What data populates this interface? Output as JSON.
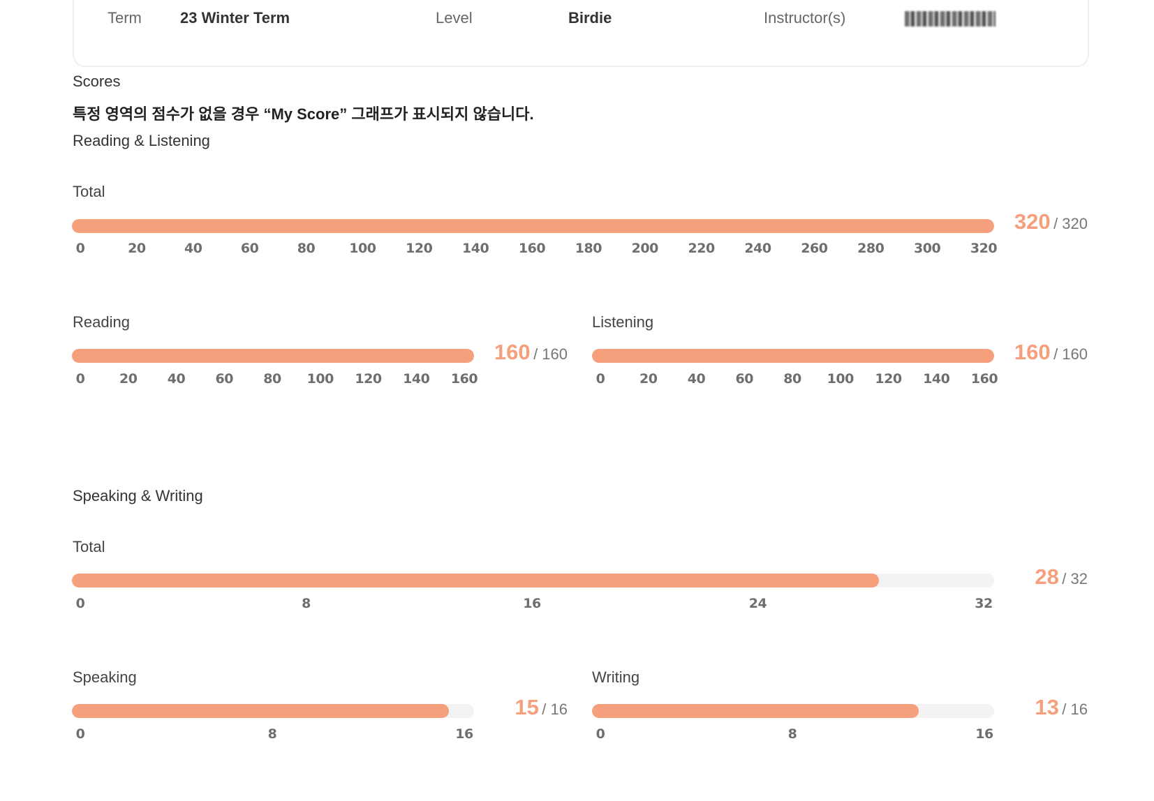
{
  "header": {
    "term_label": "Term",
    "term_value": "23 Winter Term",
    "level_label": "Level",
    "level_value": "Birdie",
    "instructor_label": "Instructor(s)",
    "instructor_value": ""
  },
  "scores": {
    "title": "Scores",
    "notice": "특정 영역의 점수가 없을 경우 “My Score” 그래프가 표시되지 않습니다.",
    "sections": [
      {
        "title": "Reading & Listening",
        "total": {
          "label": "Total",
          "score": 320,
          "score_text": "320",
          "max": 320,
          "max_text": "/ 320",
          "ticks": [
            "0",
            "20",
            "40",
            "60",
            "80",
            "100",
            "120",
            "140",
            "160",
            "180",
            "200",
            "220",
            "240",
            "260",
            "280",
            "300",
            "320"
          ]
        },
        "parts": [
          {
            "label": "Reading",
            "score": 160,
            "score_text": "160",
            "max": 160,
            "max_text": "/ 160",
            "ticks": [
              "0",
              "20",
              "40",
              "60",
              "80",
              "100",
              "120",
              "140",
              "160"
            ]
          },
          {
            "label": "Listening",
            "score": 160,
            "score_text": "160",
            "max": 160,
            "max_text": "/ 160",
            "ticks": [
              "0",
              "20",
              "40",
              "60",
              "80",
              "100",
              "120",
              "140",
              "160"
            ]
          }
        ]
      },
      {
        "title": "Speaking & Writing",
        "total": {
          "label": "Total",
          "score": 28,
          "score_text": "28",
          "max": 32,
          "max_text": "/ 32",
          "ticks": [
            "0",
            "8",
            "16",
            "24",
            "32"
          ]
        },
        "parts": [
          {
            "label": "Speaking",
            "score": 15,
            "score_text": "15",
            "max": 16,
            "max_text": "/ 16",
            "ticks": [
              "0",
              "8",
              "16"
            ]
          },
          {
            "label": "Writing",
            "score": 13,
            "score_text": "13",
            "max": 16,
            "max_text": "/ 16",
            "ticks": [
              "0",
              "8",
              "16"
            ]
          }
        ]
      }
    ]
  },
  "colors": {
    "accent": "#f69f7c",
    "track": "#f3f3f3",
    "tick_text": "#6e6e6e"
  }
}
